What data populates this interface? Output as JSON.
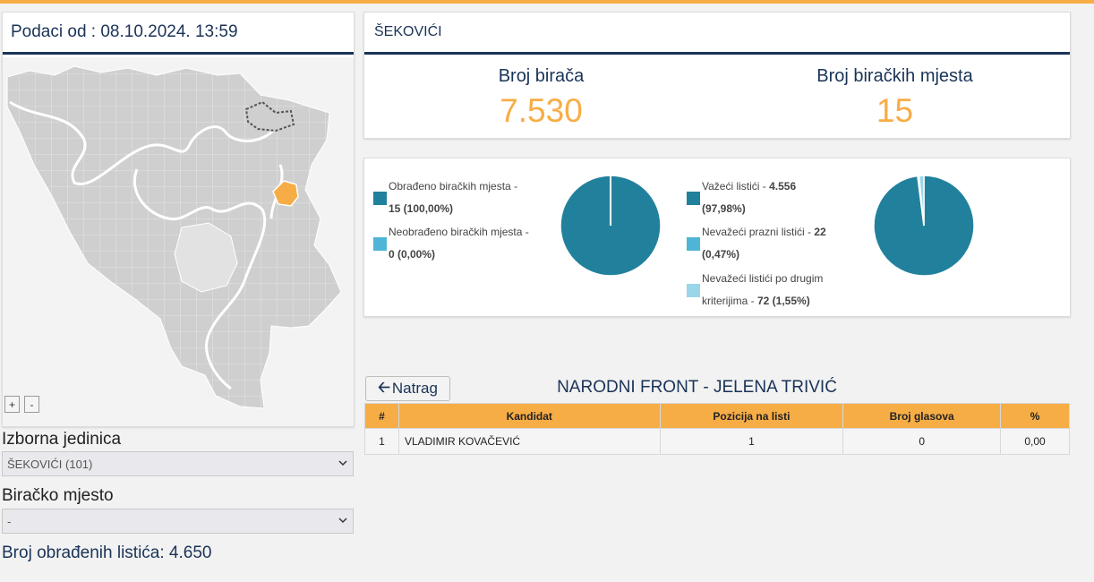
{
  "left": {
    "data_from": "Podaci od : 08.10.2024. 13:59",
    "zoom_in": "+",
    "zoom_out": "-",
    "electoral_unit_label": "Izborna jedinica",
    "electoral_unit_value": "ŠEKOVIĆI (101)",
    "polling_station_label": "Biračko mjesto",
    "polling_station_value": "-",
    "processed_ballots": "Broj obrađenih listića: 4.650"
  },
  "municipality": {
    "name": "ŠEKOVIĆI",
    "voters_label": "Broj birača",
    "voters_value": "7.530",
    "stations_label": "Broj biračkih mjesta",
    "stations_value": "15"
  },
  "pie1": {
    "legend": [
      {
        "label": "Obrađeno biračkih mjesta - ",
        "value": "15 (100,00%)",
        "color": "#21819d"
      },
      {
        "label": "Neobrađeno biračkih mjesta - ",
        "value": "0 (0,00%)",
        "color": "#4fb5d6"
      }
    ],
    "fractions": [
      1.0,
      0.0
    ]
  },
  "pie2": {
    "legend": [
      {
        "label": "Važeći listići - ",
        "value": "4.556",
        "label2": "(97,98%)",
        "color": "#21819d"
      },
      {
        "label": "Nevažeći prazni listići - ",
        "value": "22",
        "label2": "(0,47%)",
        "color": "#4fb5d6"
      },
      {
        "label": "Nevažeći listići po drugim",
        "label_b": "kriterijima - ",
        "value": "72 (1,55%)",
        "color": "#9ad6ea"
      }
    ],
    "fractions": [
      0.9798,
      0.0047,
      0.0155
    ]
  },
  "results": {
    "back_label": "Natrag",
    "party": "NARODNI FRONT - JELENA TRIVIĆ",
    "columns": [
      "#",
      "Kandidat",
      "Pozicija na listi",
      "Broj glasova",
      "%"
    ],
    "rows": [
      [
        "1",
        "VLADIMIR KOVAČEVIĆ",
        "1",
        "0",
        "0,00"
      ]
    ]
  },
  "colors": {
    "accent": "#f7ad45",
    "navy": "#1a3357",
    "teal": "#21819d",
    "highlight_municipality": "#f7ad45"
  }
}
